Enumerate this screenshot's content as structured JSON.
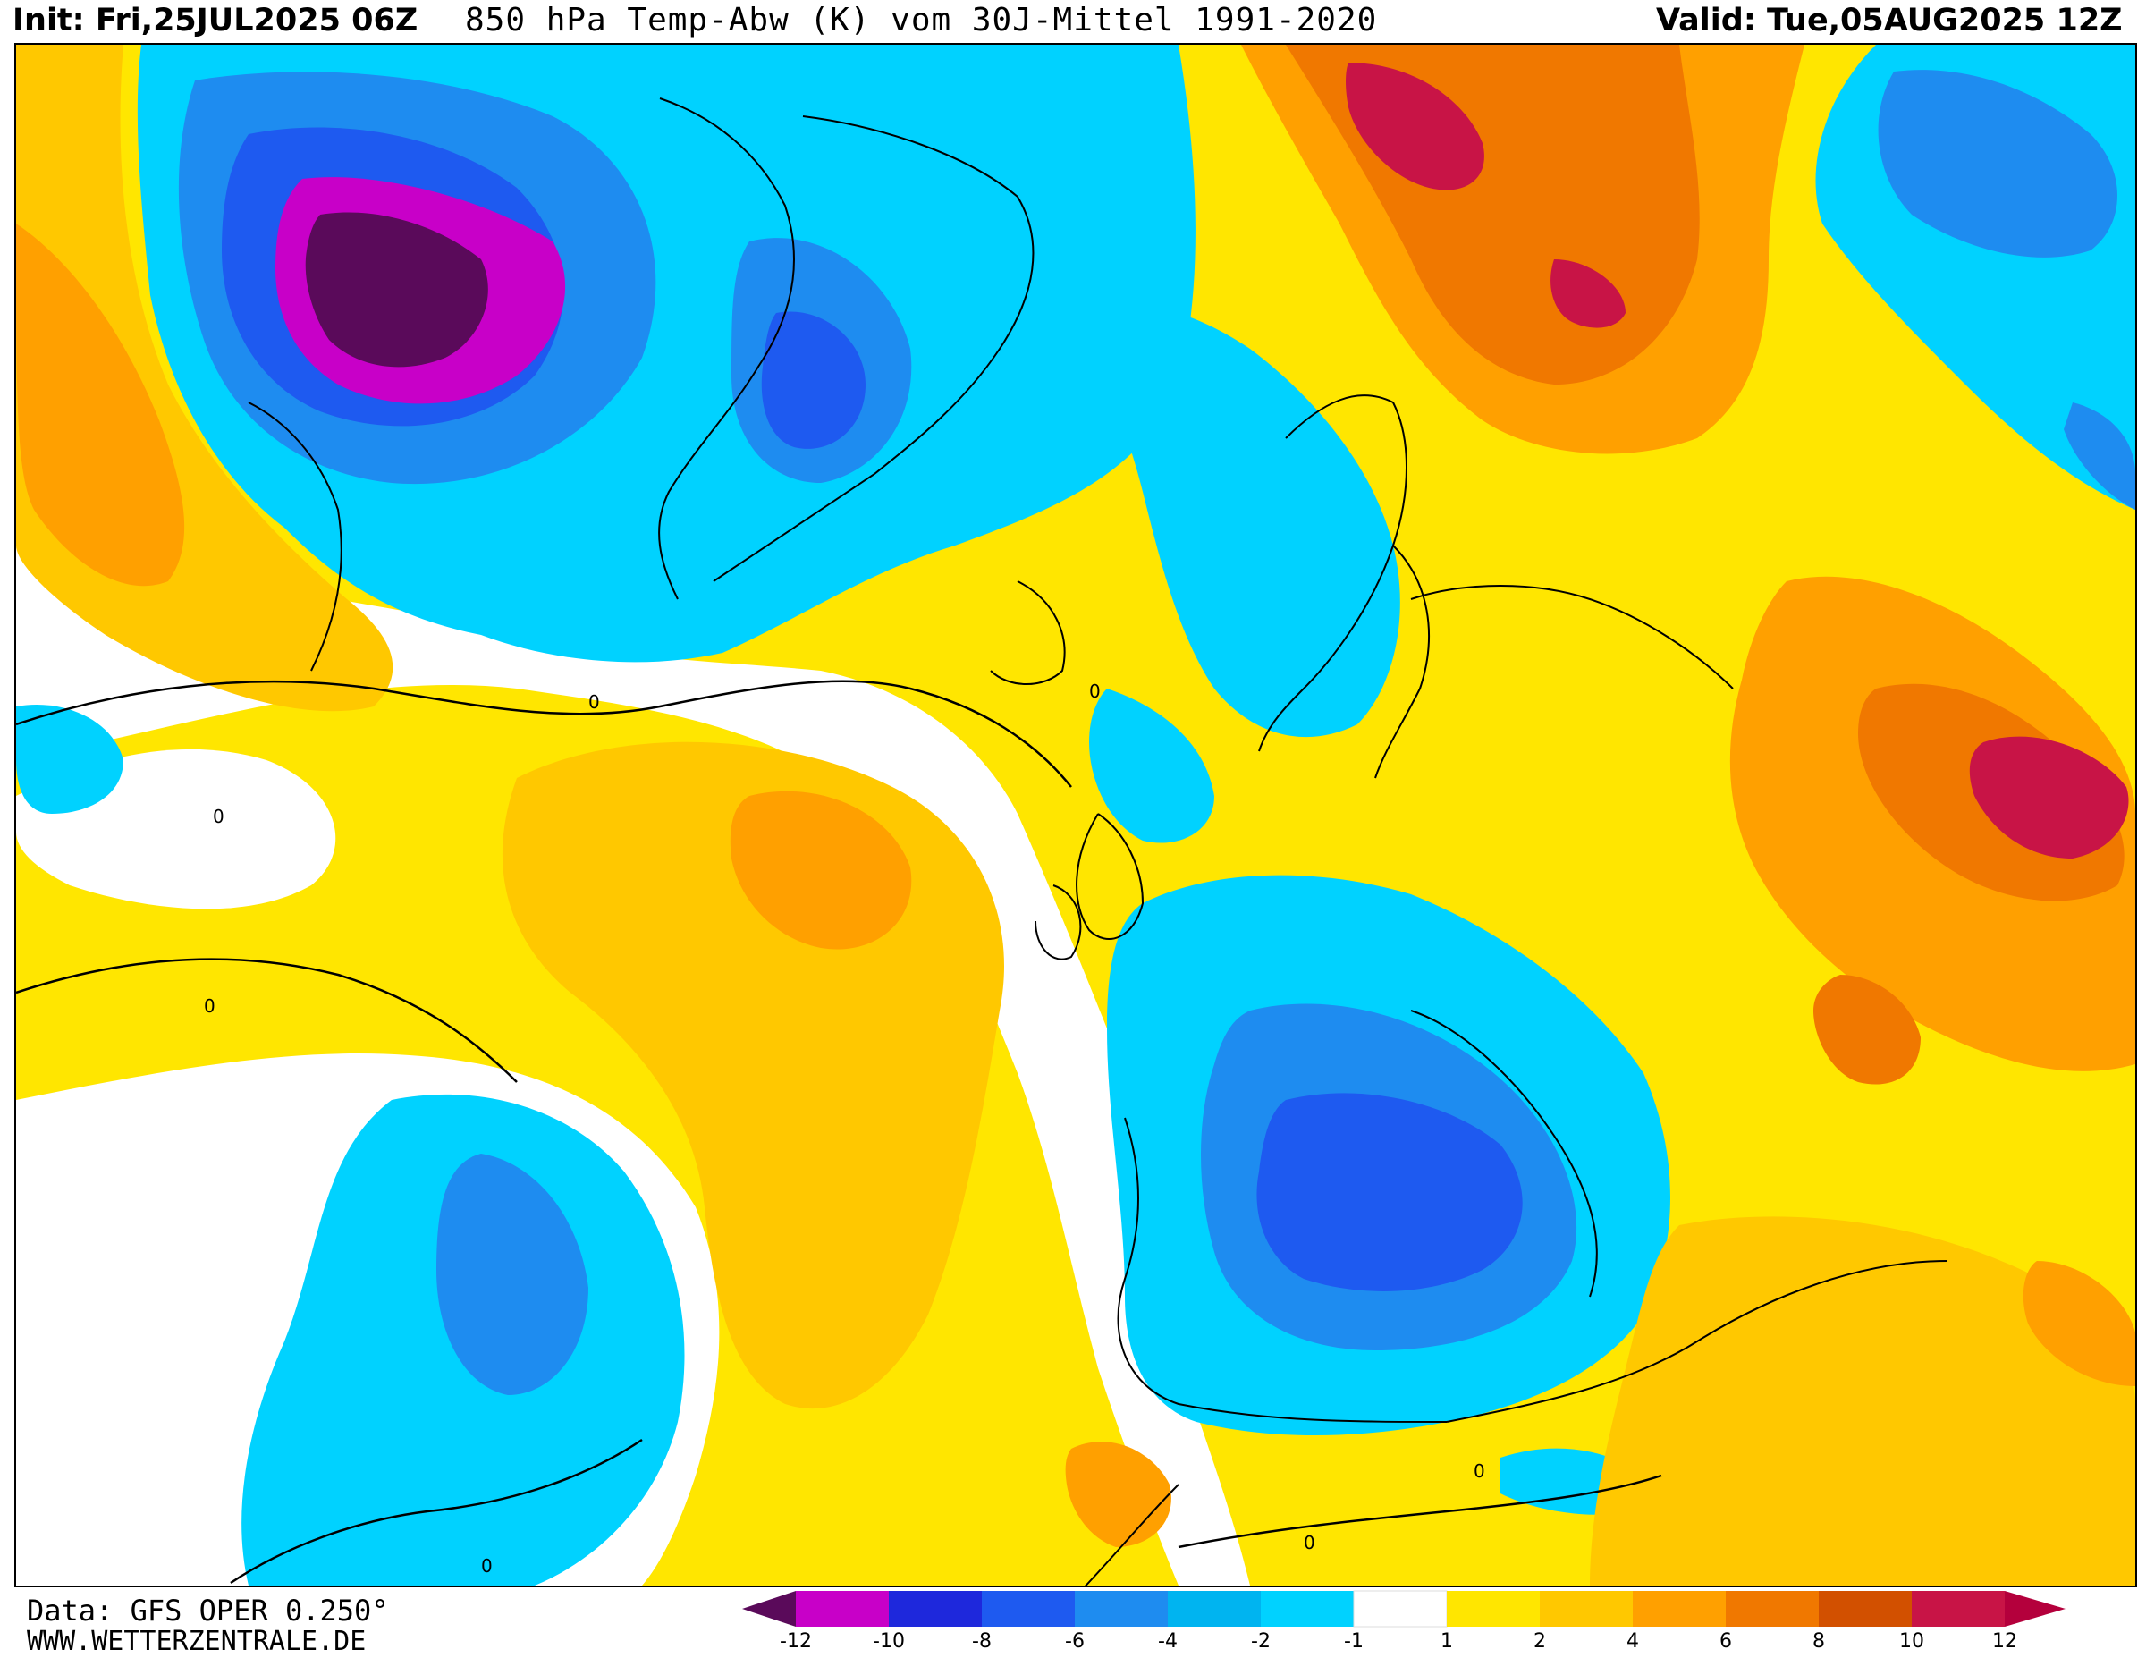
{
  "header": {
    "init": "Init: Fri,25JUL2025 06Z",
    "title": "850 hPa Temp-Abw (K) vom 30J-Mittel 1991-2020",
    "valid": "Valid: Tue,05AUG2025 12Z"
  },
  "footer": {
    "data_source": "Data: GFS OPER 0.250°",
    "website": "WWW.WETTERZENTRALE.DE"
  },
  "legend": {
    "labels": [
      "-12",
      "-10",
      "-8",
      "-6",
      "-4",
      "-2",
      "-1",
      "1",
      "2",
      "4",
      "6",
      "8",
      "10",
      "12"
    ],
    "colors": [
      "#5a0a5a",
      "#c800c8",
      "#1e28dc",
      "#1e5af0",
      "#1e8cf0",
      "#00b4f0",
      "#00d2ff",
      "#ffffff",
      "#ffe600",
      "#ffc800",
      "#ffa000",
      "#f07800",
      "#d25000",
      "#c81446",
      "#b4003c"
    ]
  },
  "contour_label": "0"
}
